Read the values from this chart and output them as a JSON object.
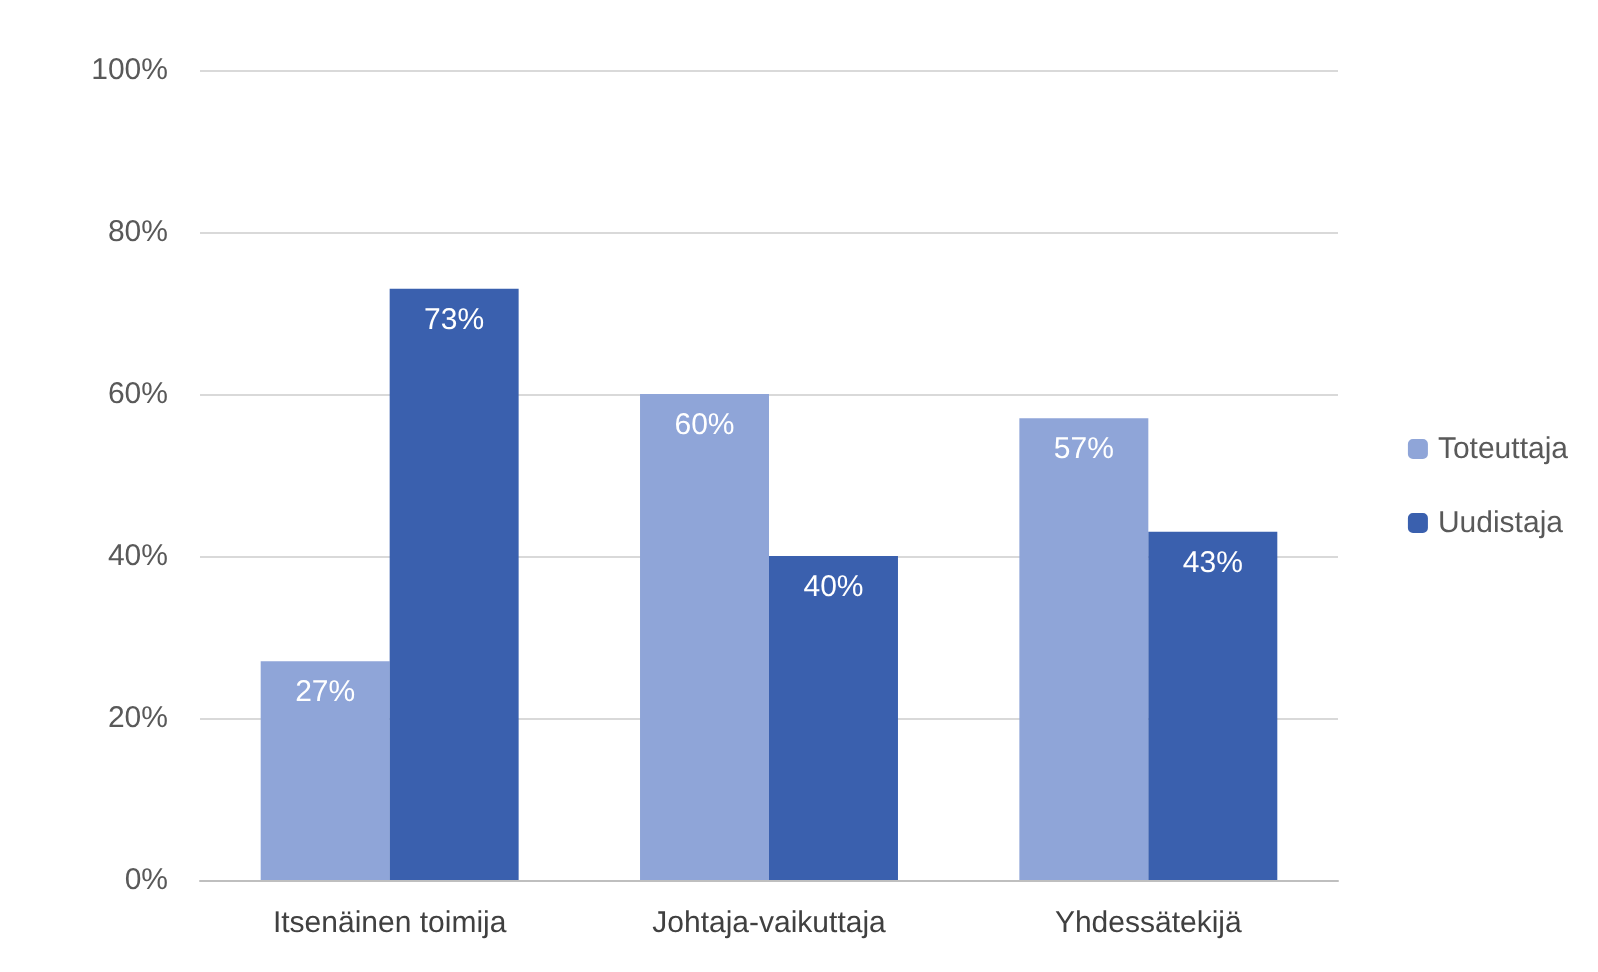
{
  "chart_data": {
    "type": "bar",
    "categories": [
      "Itsenäinen toimija",
      "Johtaja-vaikuttaja",
      "Yhdessätekijä"
    ],
    "series": [
      {
        "name": "Toteuttaja",
        "color": "#8fa5d8",
        "values": [
          27,
          60,
          57
        ],
        "value_labels": [
          "27%",
          "60%",
          "57%"
        ]
      },
      {
        "name": "Uudistaja",
        "color": "#3a60ae",
        "values": [
          73,
          40,
          43
        ],
        "value_labels": [
          "73%",
          "40%",
          "43%"
        ]
      }
    ],
    "ylim": [
      0,
      100
    ],
    "yticks": [
      {
        "value": 0,
        "label": "0%"
      },
      {
        "value": 20,
        "label": "20%"
      },
      {
        "value": 40,
        "label": "40%"
      },
      {
        "value": 60,
        "label": "60%"
      },
      {
        "value": 80,
        "label": "80%"
      },
      {
        "value": 100,
        "label": "100%"
      }
    ],
    "grid": "y",
    "legend": "right"
  }
}
